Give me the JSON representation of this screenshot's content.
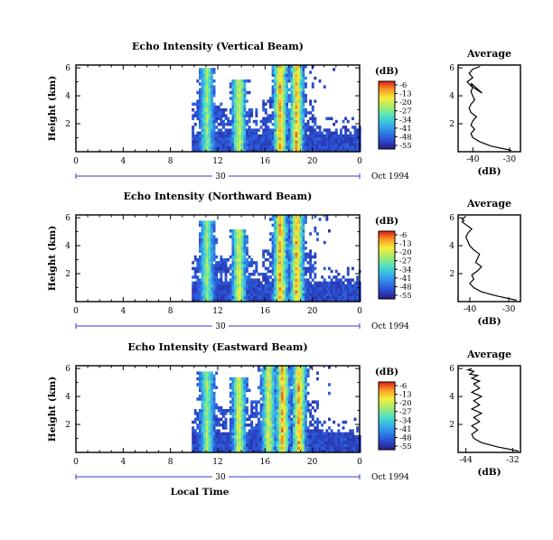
{
  "chart_data": [
    {
      "type": "heatmap",
      "title": "Echo Intensity (Vertical Beam)",
      "ylabel": "Height (km)",
      "yticks": [
        2,
        4,
        6
      ],
      "ylim": [
        0,
        6.2
      ],
      "xticks": [
        "0",
        "4",
        "8",
        "12",
        "16",
        "20",
        "0"
      ],
      "xlim": [
        0,
        24
      ],
      "date_label": "30",
      "date_suffix": "Oct 1994",
      "colorbar_title": "(dB)",
      "colorbar_ticks": [
        "-6",
        "-13",
        "-20",
        "-27",
        "-34",
        "-41",
        "-48",
        "-55"
      ],
      "colorbar_range": [
        -55,
        -6
      ],
      "data_start_hour": 9.8,
      "convective_cells": [
        {
          "hour": 11.0,
          "top_km": 6.0,
          "peak_db": -20
        },
        {
          "hour": 13.7,
          "top_km": 5.2,
          "peak_db": -13
        },
        {
          "hour": 17.2,
          "top_km": 6.2,
          "peak_db": -6
        },
        {
          "hour": 18.6,
          "top_km": 6.2,
          "peak_db": -6
        }
      ],
      "profile": {
        "title": "Average",
        "xlabel": "(dB)",
        "xticks": [
          "-40",
          "-30"
        ],
        "xlim": [
          -44,
          -27
        ],
        "yticks": [
          2,
          4,
          6
        ],
        "ylim": [
          0,
          6.2
        ],
        "x": [
          -29.5,
          -35,
          -38,
          -40,
          -40.5,
          -39.5,
          -40.5,
          -40,
          -39,
          -40.5,
          -41,
          -40.5,
          -39.5,
          -40,
          -40.5,
          -40,
          -40.5,
          -37.5,
          -40.5,
          -41.5,
          -40,
          -41,
          -40,
          -38
        ],
        "y": [
          0.1,
          0.4,
          0.7,
          1.0,
          1.3,
          1.6,
          1.9,
          2.2,
          2.5,
          2.8,
          3.1,
          3.4,
          3.7,
          4.0,
          4.3,
          4.6,
          4.9,
          4.2,
          4.7,
          5.0,
          5.3,
          5.6,
          5.9,
          6.1
        ]
      }
    },
    {
      "type": "heatmap",
      "title": "Echo Intensity (Northward Beam)",
      "ylabel": "Height (km)",
      "yticks": [
        2,
        4,
        6
      ],
      "ylim": [
        0,
        6.2
      ],
      "xticks": [
        "0",
        "4",
        "8",
        "12",
        "16",
        "20",
        "0"
      ],
      "xlim": [
        0,
        24
      ],
      "date_label": "30",
      "date_suffix": "Oct 1994",
      "colorbar_title": "(dB)",
      "colorbar_ticks": [
        "-6",
        "-13",
        "-20",
        "-27",
        "-34",
        "-41",
        "-48",
        "-55"
      ],
      "colorbar_range": [
        -55,
        -6
      ],
      "data_start_hour": 9.8,
      "convective_cells": [
        {
          "hour": 11.0,
          "top_km": 5.8,
          "peak_db": -20
        },
        {
          "hour": 13.7,
          "top_km": 5.2,
          "peak_db": -13
        },
        {
          "hour": 17.2,
          "top_km": 6.2,
          "peak_db": -6
        },
        {
          "hour": 18.6,
          "top_km": 6.2,
          "peak_db": -6
        }
      ],
      "profile": {
        "title": "Average",
        "xlabel": "(dB)",
        "xticks": [
          "-40",
          "-30"
        ],
        "xlim": [
          -43,
          -27
        ],
        "yticks": [
          2,
          4,
          6
        ],
        "ylim": [
          0,
          6.2
        ],
        "x": [
          -28,
          -33,
          -37,
          -39,
          -40,
          -39,
          -39.5,
          -38,
          -37,
          -38.5,
          -38,
          -37.5,
          -39,
          -40,
          -40.5,
          -41,
          -40.5,
          -39.5,
          -41,
          -42,
          -41.5,
          -42,
          -41.5,
          -41
        ],
        "y": [
          0.1,
          0.4,
          0.7,
          1.0,
          1.3,
          1.6,
          1.9,
          2.2,
          2.5,
          2.8,
          3.1,
          3.4,
          3.7,
          4.0,
          4.3,
          4.6,
          4.9,
          5.2,
          5.5,
          5.7,
          5.8,
          5.9,
          6.0,
          6.1
        ]
      }
    },
    {
      "type": "heatmap",
      "title": "Echo Intensity (Eastward Beam)",
      "ylabel": "Height (km)",
      "yticks": [
        2,
        4,
        6
      ],
      "ylim": [
        0,
        6.2
      ],
      "xticks": [
        "0",
        "4",
        "8",
        "12",
        "16",
        "20",
        "0"
      ],
      "xlim": [
        0,
        24
      ],
      "date_label": "30",
      "date_suffix": "Oct 1994",
      "xlabel": "Local Time",
      "colorbar_title": "(dB)",
      "colorbar_ticks": [
        "-6",
        "-13",
        "-20",
        "-27",
        "-34",
        "-41",
        "-48",
        "-55"
      ],
      "colorbar_range": [
        -55,
        -6
      ],
      "data_start_hour": 9.8,
      "convective_cells": [
        {
          "hour": 11.0,
          "top_km": 5.8,
          "peak_db": -20
        },
        {
          "hour": 13.7,
          "top_km": 5.4,
          "peak_db": -13
        },
        {
          "hour": 16.2,
          "top_km": 6.2,
          "peak_db": -13
        },
        {
          "hour": 17.4,
          "top_km": 6.2,
          "peak_db": -6
        },
        {
          "hour": 18.8,
          "top_km": 6.2,
          "peak_db": -6
        }
      ],
      "profile": {
        "title": "Average",
        "xlabel": "(dB)",
        "xticks": [
          "-44",
          "-32"
        ],
        "xlim": [
          -46,
          -30
        ],
        "yticks": [
          2,
          4,
          6
        ],
        "ylim": [
          0,
          6.2
        ],
        "x": [
          -30.5,
          -36,
          -40,
          -42,
          -42.5,
          -41,
          -42.5,
          -40.5,
          -42,
          -40,
          -42.5,
          -40.5,
          -42,
          -40,
          -42.5,
          -40.5,
          -42,
          -40.5,
          -42.5,
          -41,
          -43,
          -42,
          -43.5,
          -42.5
        ],
        "y": [
          0.1,
          0.4,
          0.7,
          1.0,
          1.3,
          1.6,
          1.9,
          2.2,
          2.5,
          2.8,
          3.1,
          3.4,
          3.7,
          4.0,
          4.3,
          4.6,
          4.9,
          5.1,
          5.3,
          5.5,
          5.6,
          5.8,
          5.9,
          6.0
        ]
      }
    }
  ]
}
